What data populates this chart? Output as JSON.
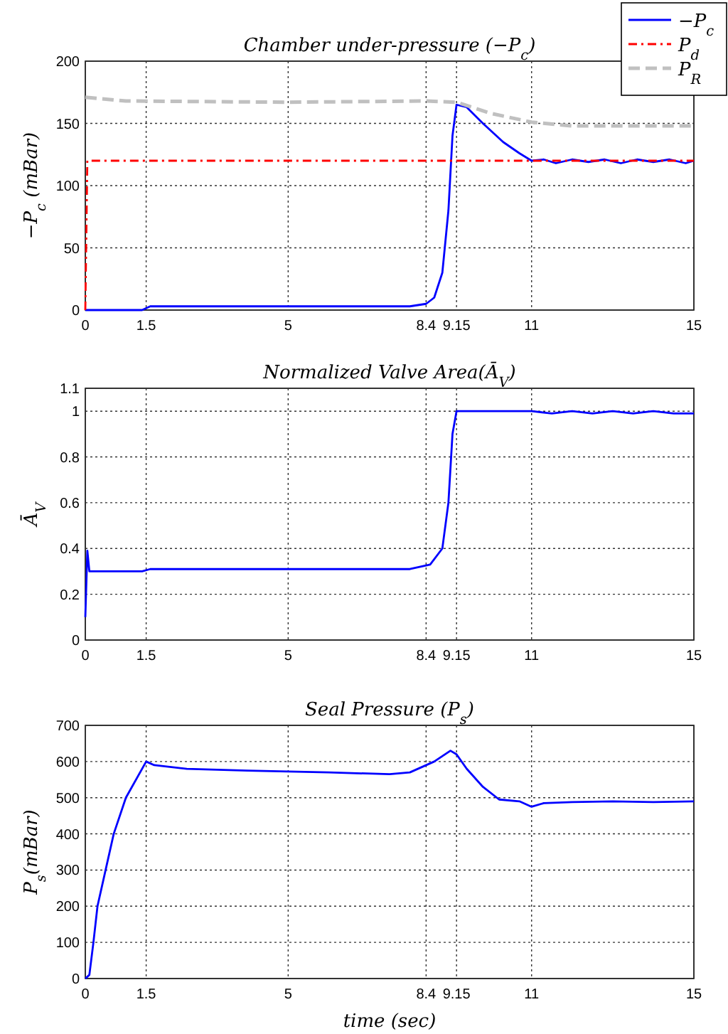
{
  "chart_data": [
    {
      "type": "line",
      "title": "Chamber under-pressure (−P$_{c}$)",
      "ylabel": "−P$_{c}$ (mBar)",
      "xlim": [
        0,
        15
      ],
      "xticks": [
        0,
        1.5,
        5,
        8.4,
        9.15,
        11,
        15
      ],
      "ylim": [
        0,
        200
      ],
      "yticks": [
        0,
        50,
        100,
        150,
        200
      ],
      "grid": true,
      "legend": "top right",
      "series": [
        {
          "name": "−P$_{c}$",
          "color": "#0000ff",
          "line_style": "solid",
          "x": [
            0,
            1.4,
            1.6,
            3,
            5,
            8,
            8.4,
            8.6,
            8.8,
            8.95,
            9.05,
            9.15,
            9.4,
            9.8,
            10.3,
            10.7,
            11,
            11.3,
            11.6,
            12,
            12.4,
            12.8,
            13.2,
            13.6,
            14,
            14.4,
            14.8,
            15
          ],
          "values": [
            0,
            0,
            3,
            3,
            3,
            3,
            5,
            10,
            30,
            80,
            140,
            165,
            163,
            150,
            135,
            126,
            120,
            121,
            118,
            121,
            119,
            121,
            118,
            121,
            119,
            121,
            118,
            120
          ]
        },
        {
          "name": "P$_{d}$",
          "color": "#ff0000",
          "line_style": "dashdot",
          "x": [
            0,
            0.05,
            15
          ],
          "values": [
            0,
            120,
            120
          ]
        },
        {
          "name": "P$_{R}$",
          "color": "#c0c0c0",
          "line_style": "dashed",
          "x": [
            0,
            1,
            5,
            8.4,
            9.15,
            10,
            11,
            12,
            15
          ],
          "values": [
            171,
            168,
            167,
            168,
            167,
            158,
            151,
            148,
            148
          ]
        }
      ]
    },
    {
      "type": "line",
      "title": "Normalized Valve Area(Ā$_{V}$)",
      "ylabel": "Ā$_{V}$",
      "xlim": [
        0,
        15
      ],
      "xticks": [
        0,
        1.5,
        5,
        8.4,
        9.15,
        11,
        15
      ],
      "ylim": [
        0,
        1.1
      ],
      "yticks": [
        0,
        0.2,
        0.4,
        0.6,
        0.8,
        1,
        1.1
      ],
      "grid": true,
      "series": [
        {
          "color": "#0000ff",
          "line_style": "solid",
          "x": [
            0,
            0.05,
            0.1,
            1.4,
            1.6,
            8,
            8.5,
            8.8,
            8.95,
            9.05,
            9.15,
            11,
            11.5,
            12,
            12.5,
            13,
            13.5,
            14,
            14.5,
            15
          ],
          "values": [
            0.1,
            0.39,
            0.3,
            0.3,
            0.31,
            0.31,
            0.33,
            0.4,
            0.6,
            0.9,
            1,
            1,
            0.99,
            1,
            0.99,
            1,
            0.99,
            1,
            0.99,
            0.99
          ]
        }
      ]
    },
    {
      "type": "line",
      "title": "Seal Pressure (P$_{s}$)",
      "xlabel": "time (sec)",
      "ylabel": "P$_{s}$(mBar)",
      "xlim": [
        0,
        15
      ],
      "xticks": [
        0,
        1.5,
        5,
        8.4,
        9.15,
        11,
        15
      ],
      "ylim": [
        0,
        700
      ],
      "yticks": [
        0,
        100,
        200,
        300,
        400,
        500,
        600,
        700
      ],
      "grid": true,
      "series": [
        {
          "color": "#0000ff",
          "line_style": "solid",
          "x": [
            0,
            0.1,
            0.2,
            0.3,
            0.5,
            0.7,
            1,
            1.5,
            1.7,
            2.5,
            4,
            6,
            7.5,
            8,
            8.6,
            9,
            9.15,
            9.4,
            9.8,
            10.2,
            10.7,
            11,
            11.3,
            12,
            13,
            14,
            15
          ],
          "values": [
            0,
            10,
            100,
            200,
            300,
            400,
            500,
            600,
            590,
            580,
            575,
            570,
            565,
            570,
            600,
            630,
            620,
            580,
            530,
            495,
            490,
            475,
            485,
            488,
            490,
            488,
            490
          ]
        }
      ]
    }
  ]
}
